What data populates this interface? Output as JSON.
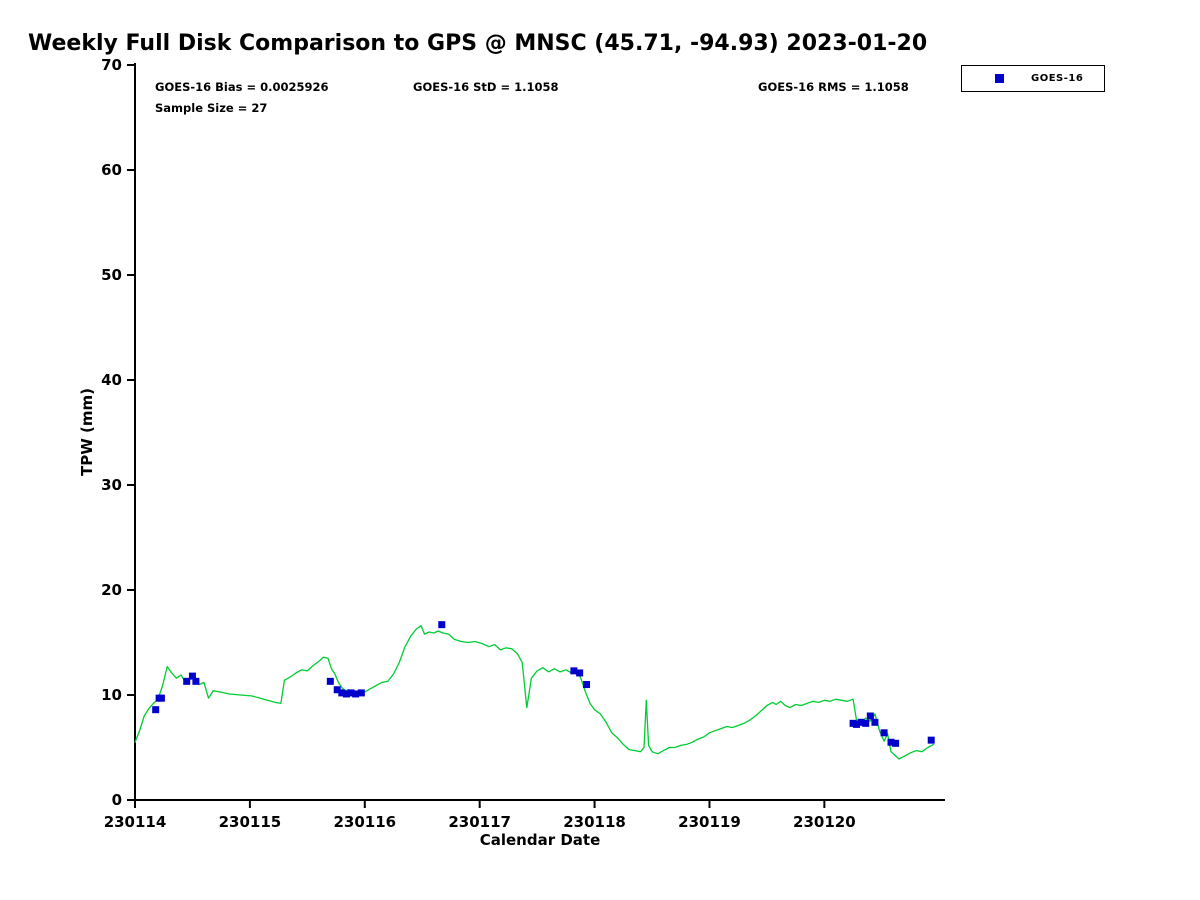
{
  "title": "Weekly Full Disk Comparison to GPS @ MNSC (45.71, -94.93) 2023-01-20",
  "stats": {
    "bias_label": "GOES-16 Bias = 0.0025926",
    "std_label": "GOES-16 StD = 1.1058",
    "rms_label": "GOES-16 RMS = 1.1058",
    "sample_label": "Sample Size = 27"
  },
  "legend": {
    "label": "GOES-16",
    "marker_color": "#0000CC"
  },
  "chart_data": {
    "type": "line+scatter",
    "title": "Weekly Full Disk Comparison to GPS @ MNSC (45.71, -94.93) 2023-01-20",
    "xlabel": "Calendar Date",
    "ylabel": "TPW (mm)",
    "xlim": [
      230114,
      230121.05
    ],
    "ylim": [
      0,
      70
    ],
    "xticks": [
      230114,
      230115,
      230116,
      230117,
      230118,
      230119,
      230120
    ],
    "xtick_labels": [
      "230114",
      "230115",
      "230116",
      "230117",
      "230118",
      "230119",
      "230120"
    ],
    "yticks": [
      0,
      10,
      20,
      30,
      40,
      50,
      60,
      70
    ],
    "ytick_labels": [
      "0",
      "10",
      "20",
      "30",
      "40",
      "50",
      "60",
      "70"
    ],
    "grid": false,
    "legend_position": "top-right-outside",
    "series": [
      {
        "name": "GPS",
        "type": "line",
        "color": "#00CC33",
        "points": [
          [
            230114.0,
            5.5
          ],
          [
            230114.04,
            6.6
          ],
          [
            230114.08,
            8.0
          ],
          [
            230114.12,
            8.7
          ],
          [
            230114.16,
            9.2
          ],
          [
            230114.2,
            9.6
          ],
          [
            230114.24,
            10.9
          ],
          [
            230114.28,
            12.7
          ],
          [
            230114.32,
            12.1
          ],
          [
            230114.36,
            11.6
          ],
          [
            230114.4,
            11.9
          ],
          [
            230114.44,
            11.2
          ],
          [
            230114.48,
            11.5
          ],
          [
            230114.52,
            11.7
          ],
          [
            230114.56,
            11.0
          ],
          [
            230114.6,
            11.2
          ],
          [
            230114.64,
            9.7
          ],
          [
            230114.68,
            10.4
          ],
          [
            230114.74,
            10.3
          ],
          [
            230114.82,
            10.1
          ],
          [
            230114.92,
            10.0
          ],
          [
            230115.02,
            9.9
          ],
          [
            230115.12,
            9.6
          ],
          [
            230115.22,
            9.3
          ],
          [
            230115.27,
            9.2
          ],
          [
            230115.3,
            11.4
          ],
          [
            230115.35,
            11.7
          ],
          [
            230115.4,
            12.1
          ],
          [
            230115.45,
            12.4
          ],
          [
            230115.5,
            12.3
          ],
          [
            230115.55,
            12.8
          ],
          [
            230115.6,
            13.2
          ],
          [
            230115.64,
            13.6
          ],
          [
            230115.68,
            13.5
          ],
          [
            230115.71,
            12.5
          ],
          [
            230115.74,
            12.0
          ],
          [
            230115.77,
            11.2
          ],
          [
            230115.8,
            10.7
          ],
          [
            230115.83,
            10.4
          ],
          [
            230115.86,
            10.5
          ],
          [
            230115.9,
            10.3
          ],
          [
            230115.95,
            10.2
          ],
          [
            230116.0,
            10.3
          ],
          [
            230116.05,
            10.6
          ],
          [
            230116.1,
            10.9
          ],
          [
            230116.15,
            11.2
          ],
          [
            230116.2,
            11.3
          ],
          [
            230116.25,
            12.0
          ],
          [
            230116.3,
            13.1
          ],
          [
            230116.35,
            14.6
          ],
          [
            230116.4,
            15.6
          ],
          [
            230116.45,
            16.3
          ],
          [
            230116.49,
            16.6
          ],
          [
            230116.52,
            15.8
          ],
          [
            230116.56,
            16.0
          ],
          [
            230116.6,
            15.9
          ],
          [
            230116.64,
            16.1
          ],
          [
            230116.68,
            15.9
          ],
          [
            230116.73,
            15.8
          ],
          [
            230116.78,
            15.3
          ],
          [
            230116.84,
            15.1
          ],
          [
            230116.9,
            15.0
          ],
          [
            230116.96,
            15.1
          ],
          [
            230117.02,
            14.9
          ],
          [
            230117.08,
            14.6
          ],
          [
            230117.13,
            14.8
          ],
          [
            230117.18,
            14.3
          ],
          [
            230117.23,
            14.5
          ],
          [
            230117.28,
            14.4
          ],
          [
            230117.33,
            13.9
          ],
          [
            230117.37,
            13.1
          ],
          [
            230117.41,
            8.8
          ],
          [
            230117.45,
            11.6
          ],
          [
            230117.5,
            12.3
          ],
          [
            230117.55,
            12.6
          ],
          [
            230117.6,
            12.2
          ],
          [
            230117.65,
            12.5
          ],
          [
            230117.7,
            12.2
          ],
          [
            230117.75,
            12.4
          ],
          [
            230117.8,
            12.1
          ],
          [
            230117.85,
            12.3
          ],
          [
            230117.88,
            11.6
          ],
          [
            230117.92,
            10.3
          ],
          [
            230117.96,
            9.2
          ],
          [
            230118.0,
            8.6
          ],
          [
            230118.05,
            8.2
          ],
          [
            230118.1,
            7.4
          ],
          [
            230118.15,
            6.4
          ],
          [
            230118.2,
            5.9
          ],
          [
            230118.25,
            5.3
          ],
          [
            230118.3,
            4.8
          ],
          [
            230118.35,
            4.7
          ],
          [
            230118.4,
            4.6
          ],
          [
            230118.43,
            5.0
          ],
          [
            230118.45,
            9.5
          ],
          [
            230118.47,
            5.2
          ],
          [
            230118.5,
            4.6
          ],
          [
            230118.55,
            4.4
          ],
          [
            230118.6,
            4.7
          ],
          [
            230118.65,
            5.0
          ],
          [
            230118.7,
            5.0
          ],
          [
            230118.75,
            5.2
          ],
          [
            230118.8,
            5.3
          ],
          [
            230118.85,
            5.5
          ],
          [
            230118.9,
            5.8
          ],
          [
            230118.95,
            6.0
          ],
          [
            230119.0,
            6.4
          ],
          [
            230119.05,
            6.6
          ],
          [
            230119.1,
            6.8
          ],
          [
            230119.15,
            7.0
          ],
          [
            230119.2,
            6.9
          ],
          [
            230119.25,
            7.1
          ],
          [
            230119.3,
            7.3
          ],
          [
            230119.35,
            7.6
          ],
          [
            230119.4,
            8.0
          ],
          [
            230119.45,
            8.5
          ],
          [
            230119.5,
            9.0
          ],
          [
            230119.55,
            9.3
          ],
          [
            230119.58,
            9.1
          ],
          [
            230119.62,
            9.4
          ],
          [
            230119.66,
            9.0
          ],
          [
            230119.7,
            8.8
          ],
          [
            230119.75,
            9.1
          ],
          [
            230119.8,
            9.0
          ],
          [
            230119.85,
            9.2
          ],
          [
            230119.9,
            9.4
          ],
          [
            230119.95,
            9.3
          ],
          [
            230120.0,
            9.5
          ],
          [
            230120.05,
            9.4
          ],
          [
            230120.1,
            9.6
          ],
          [
            230120.15,
            9.5
          ],
          [
            230120.2,
            9.4
          ],
          [
            230120.25,
            9.6
          ],
          [
            230120.28,
            7.6
          ],
          [
            230120.32,
            7.3
          ],
          [
            230120.36,
            7.8
          ],
          [
            230120.4,
            7.5
          ],
          [
            230120.44,
            8.2
          ],
          [
            230120.48,
            6.6
          ],
          [
            230120.52,
            5.6
          ],
          [
            230120.55,
            6.3
          ],
          [
            230120.58,
            4.6
          ],
          [
            230120.62,
            4.2
          ],
          [
            230120.65,
            3.9
          ],
          [
            230120.7,
            4.2
          ],
          [
            230120.75,
            4.5
          ],
          [
            230120.8,
            4.7
          ],
          [
            230120.85,
            4.6
          ],
          [
            230120.9,
            5.0
          ],
          [
            230120.95,
            5.3
          ]
        ]
      },
      {
        "name": "GOES-16",
        "type": "scatter",
        "marker": "square",
        "color": "#0000CC",
        "points": [
          [
            230114.18,
            8.6
          ],
          [
            230114.21,
            9.7
          ],
          [
            230114.23,
            9.7
          ],
          [
            230114.45,
            11.3
          ],
          [
            230114.5,
            11.8
          ],
          [
            230114.53,
            11.3
          ],
          [
            230115.7,
            11.3
          ],
          [
            230115.76,
            10.5
          ],
          [
            230115.8,
            10.2
          ],
          [
            230115.84,
            10.1
          ],
          [
            230115.88,
            10.2
          ],
          [
            230115.92,
            10.1
          ],
          [
            230115.97,
            10.2
          ],
          [
            230116.67,
            16.7
          ],
          [
            230117.82,
            12.3
          ],
          [
            230117.87,
            12.1
          ],
          [
            230117.93,
            11.0
          ],
          [
            230120.25,
            7.3
          ],
          [
            230120.28,
            7.2
          ],
          [
            230120.32,
            7.4
          ],
          [
            230120.36,
            7.3
          ],
          [
            230120.4,
            8.0
          ],
          [
            230120.44,
            7.4
          ],
          [
            230120.52,
            6.4
          ],
          [
            230120.58,
            5.5
          ],
          [
            230120.62,
            5.4
          ],
          [
            230120.93,
            5.7
          ]
        ]
      }
    ]
  }
}
